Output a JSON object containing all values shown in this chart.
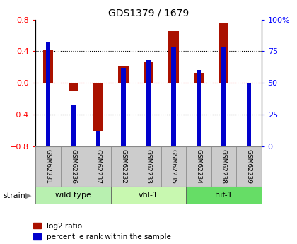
{
  "title": "GDS1379 / 1679",
  "samples": [
    "GSM62231",
    "GSM62236",
    "GSM62237",
    "GSM62232",
    "GSM62233",
    "GSM62235",
    "GSM62234",
    "GSM62238",
    "GSM62239"
  ],
  "log2_ratio": [
    0.42,
    -0.1,
    -0.6,
    0.21,
    0.27,
    0.65,
    0.13,
    0.75,
    0.0
  ],
  "percentile_rank": [
    82,
    33,
    12,
    62,
    68,
    78,
    60,
    78,
    50
  ],
  "groups": [
    {
      "label": "wild type",
      "start": 0,
      "end": 3,
      "color": "#b8f0b0"
    },
    {
      "label": "vhl-1",
      "start": 3,
      "end": 6,
      "color": "#c8f8b0"
    },
    {
      "label": "hif-1",
      "start": 6,
      "end": 9,
      "color": "#66dd66"
    }
  ],
  "ylim_left": [
    -0.8,
    0.8
  ],
  "ylim_right": [
    0,
    100
  ],
  "yticks_left": [
    -0.8,
    -0.4,
    0.0,
    0.4,
    0.8
  ],
  "yticks_right": [
    0,
    25,
    50,
    75,
    100
  ],
  "bar_color_red": "#aa1100",
  "bar_color_blue": "#0000cc",
  "strain_label": "strain"
}
